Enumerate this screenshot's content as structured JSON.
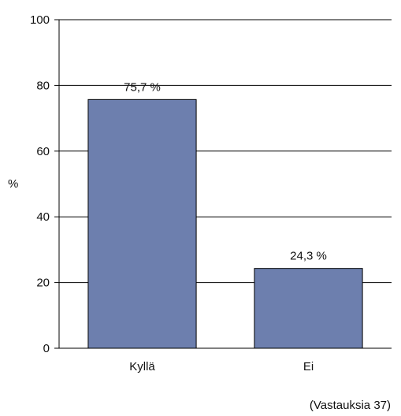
{
  "chart_data": {
    "type": "bar",
    "categories": [
      "Kyllä",
      "Ei"
    ],
    "values": [
      75.7,
      24.3
    ],
    "data_labels": [
      "75,7 %",
      "24,3 %"
    ],
    "ylabel": "%",
    "ylim": [
      0,
      100
    ],
    "yticks": [
      0,
      20,
      40,
      60,
      80,
      100
    ],
    "ytick_labels": [
      "0",
      "20",
      "40",
      "60",
      "80",
      "100"
    ],
    "grid": true,
    "bar_color": "#6d7fae",
    "footnote": "(Vastauksia 37)"
  }
}
